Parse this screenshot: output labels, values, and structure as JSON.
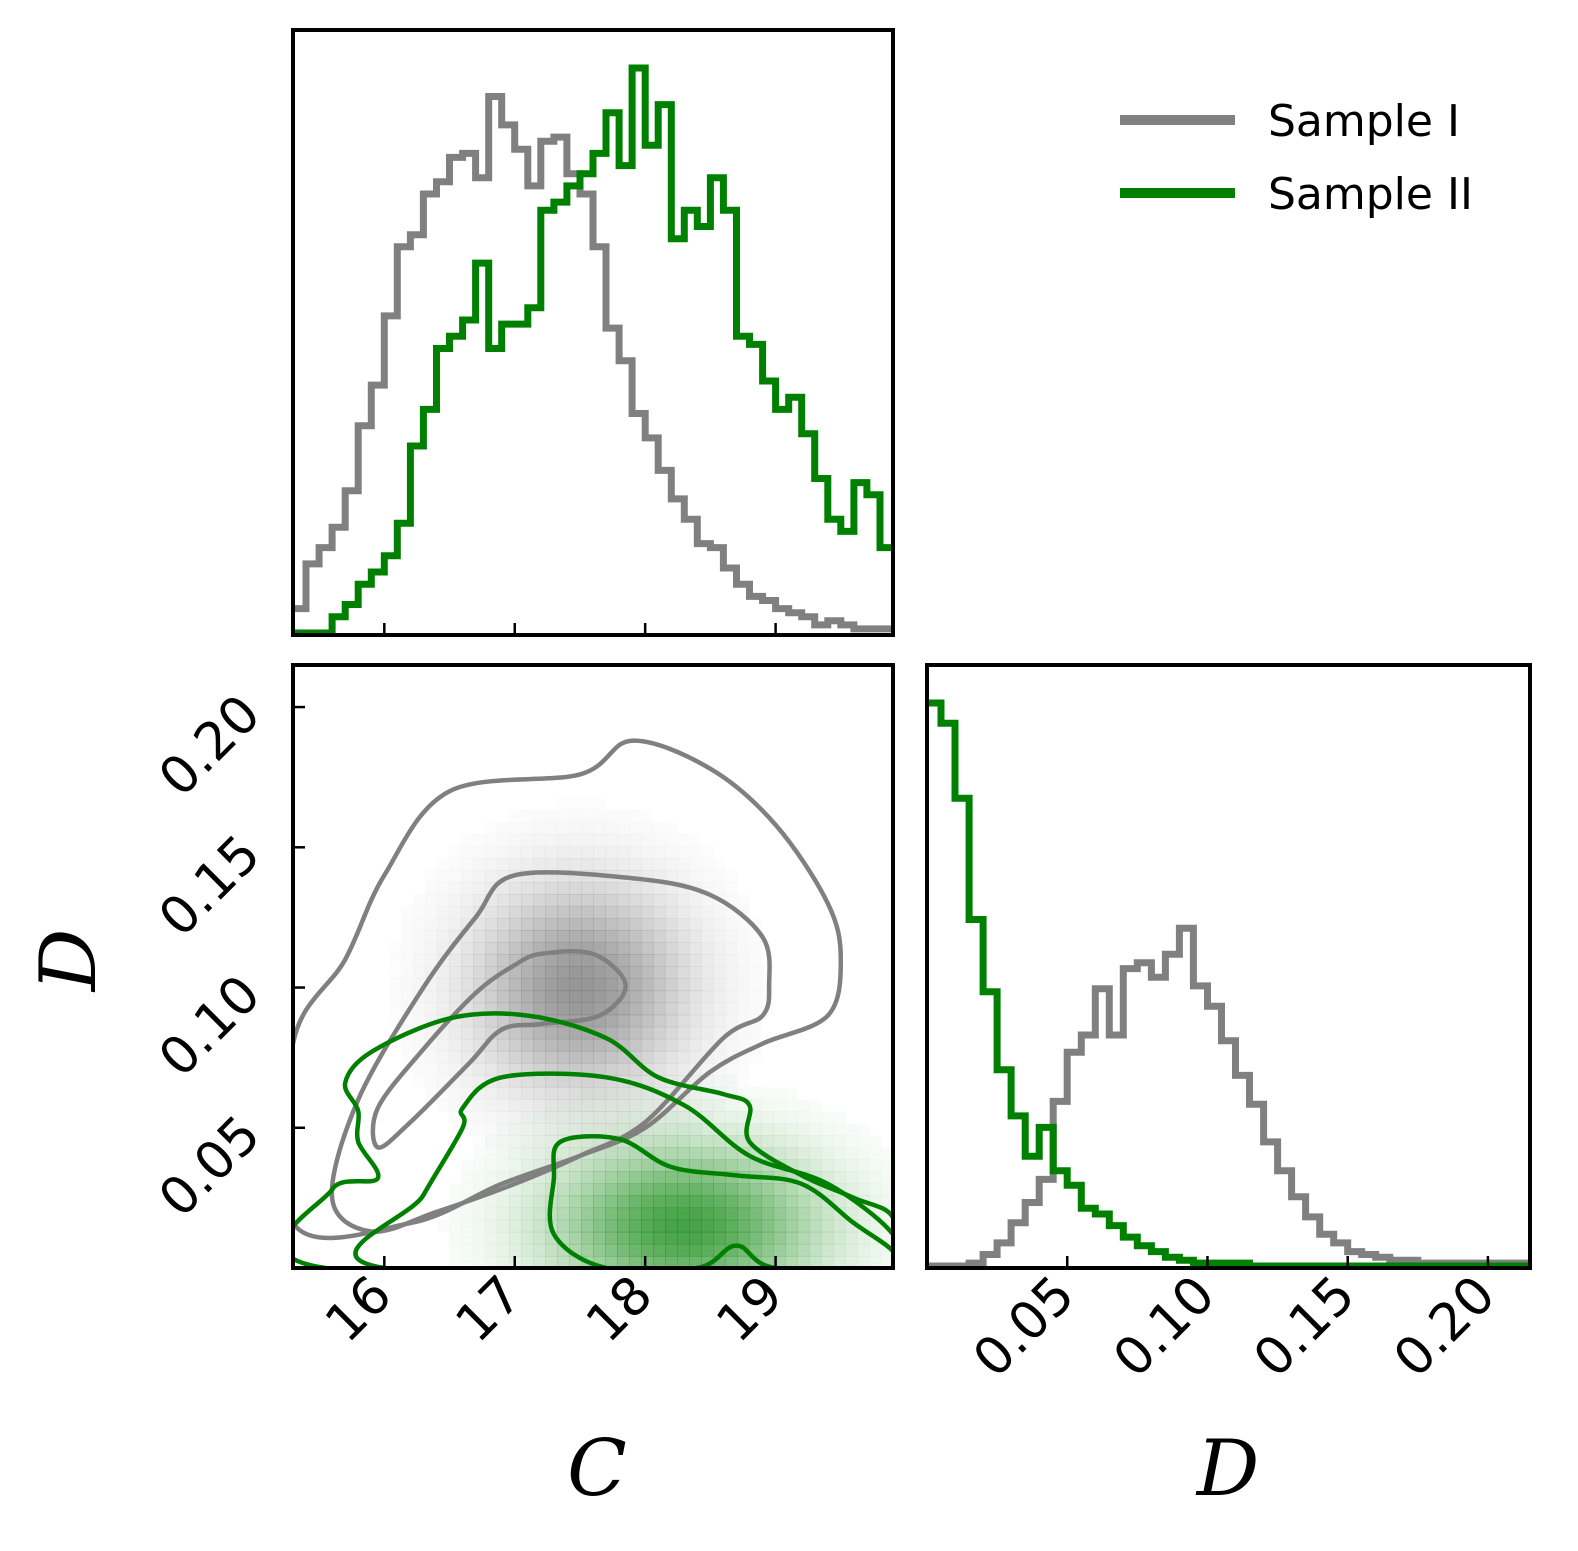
{
  "chart_data": [
    {
      "type": "histogram",
      "panel": "C marginal",
      "title": "",
      "xlabel": "",
      "ylabel": "",
      "xlim": [
        15.3,
        19.9
      ],
      "x_ticks": [
        16,
        17,
        18,
        19
      ],
      "x_tick_labels": [
        "16",
        "17",
        "18",
        "19"
      ],
      "bin_edges": [
        15.3,
        15.4,
        15.5,
        15.6,
        15.7,
        15.8,
        15.9,
        16.0,
        16.1,
        16.2,
        16.3,
        16.4,
        16.5,
        16.6,
        16.7,
        16.8,
        16.9,
        17.0,
        17.1,
        17.2,
        17.3,
        17.4,
        17.5,
        17.6,
        17.7,
        17.8,
        17.9,
        18.0,
        18.1,
        18.2,
        18.3,
        18.4,
        18.5,
        18.6,
        18.7,
        18.8,
        18.9,
        19.0,
        19.1,
        19.2,
        19.3,
        19.4,
        19.5,
        19.6,
        19.7,
        19.8,
        19.9
      ],
      "series": [
        {
          "name": "Sample I",
          "color": "#808080",
          "values": [
            0.06,
            0.17,
            0.21,
            0.26,
            0.35,
            0.51,
            0.61,
            0.78,
            0.95,
            0.98,
            1.08,
            1.11,
            1.17,
            1.18,
            1.12,
            1.32,
            1.25,
            1.19,
            1.1,
            1.21,
            1.22,
            1.13,
            1.08,
            0.95,
            0.75,
            0.67,
            0.54,
            0.48,
            0.4,
            0.33,
            0.28,
            0.22,
            0.21,
            0.16,
            0.12,
            0.09,
            0.08,
            0.06,
            0.05,
            0.04,
            0.02,
            0.03,
            0.02,
            0.01,
            0.01,
            0.01
          ]
        },
        {
          "name": "Sample II",
          "color": "#008000",
          "values": [
            0.0,
            0.0,
            0.0,
            0.04,
            0.07,
            0.12,
            0.15,
            0.19,
            0.27,
            0.46,
            0.55,
            0.7,
            0.73,
            0.77,
            0.91,
            0.7,
            0.76,
            0.76,
            0.8,
            1.04,
            1.06,
            1.1,
            1.13,
            1.18,
            1.28,
            1.15,
            1.39,
            1.2,
            1.3,
            0.97,
            1.04,
            1.0,
            1.12,
            1.04,
            0.73,
            0.71,
            0.62,
            0.55,
            0.58,
            0.49,
            0.38,
            0.28,
            0.25,
            0.37,
            0.34,
            0.21
          ]
        }
      ]
    },
    {
      "type": "contour",
      "panel": "C vs D joint",
      "title": "",
      "xlabel": "C",
      "ylabel": "D",
      "xlim": [
        15.3,
        19.9
      ],
      "ylim": [
        0.0,
        0.215
      ],
      "x_ticks": [
        16,
        17,
        18,
        19
      ],
      "x_tick_labels": [
        "16",
        "17",
        "18",
        "19"
      ],
      "y_ticks": [
        0.05,
        0.1,
        0.15,
        0.2
      ],
      "y_tick_labels": [
        "0.05",
        "0.10",
        "0.15",
        "0.20"
      ],
      "series": [
        {
          "name": "Sample I",
          "color": "#808080",
          "density_peak": [
            17.5,
            0.1
          ],
          "density_sigma": [
            0.55,
            0.025
          ],
          "contours": [
            {
              "level": "inner",
              "points": [
                [
                  17.2,
                  0.112
                ],
                [
                  17.6,
                  0.112
                ],
                [
                  17.85,
                  0.101
                ],
                [
                  17.65,
                  0.09
                ],
                [
                  17.2,
                  0.087
                ],
                [
                  16.9,
                  0.085
                ],
                [
                  16.65,
                  0.073
                ],
                [
                  16.2,
                  0.052
                ],
                [
                  15.95,
                  0.043
                ],
                [
                  15.95,
                  0.057
                ],
                [
                  16.3,
                  0.078
                ],
                [
                  16.7,
                  0.098
                ],
                [
                  17.0,
                  0.108
                ]
              ]
            },
            {
              "level": "middle",
              "points": [
                [
                  17.0,
                  0.14
                ],
                [
                  17.9,
                  0.139
                ],
                [
                  18.5,
                  0.133
                ],
                [
                  18.9,
                  0.118
                ],
                [
                  18.95,
                  0.101
                ],
                [
                  18.9,
                  0.09
                ],
                [
                  18.6,
                  0.082
                ],
                [
                  18.0,
                  0.052
                ],
                [
                  17.5,
                  0.04
                ],
                [
                  17.0,
                  0.03
                ],
                [
                  16.4,
                  0.02
                ],
                [
                  15.9,
                  0.013
                ],
                [
                  15.6,
                  0.025
                ],
                [
                  15.8,
                  0.06
                ],
                [
                  16.3,
                  0.1
                ],
                [
                  16.7,
                  0.125
                ]
              ]
            },
            {
              "level": "outer",
              "points": [
                [
                  16.5,
                  0.17
                ],
                [
                  17.5,
                  0.176
                ],
                [
                  17.9,
                  0.188
                ],
                [
                  18.5,
                  0.178
                ],
                [
                  19.0,
                  0.158
                ],
                [
                  19.4,
                  0.13
                ],
                [
                  19.5,
                  0.11
                ],
                [
                  19.4,
                  0.09
                ],
                [
                  18.9,
                  0.08
                ],
                [
                  18.5,
                  0.07
                ],
                [
                  18.0,
                  0.05
                ],
                [
                  17.5,
                  0.04
                ],
                [
                  16.9,
                  0.03
                ],
                [
                  16.2,
                  0.016
                ],
                [
                  15.3,
                  0.016
                ],
                [
                  15.3,
                  0.08
                ],
                [
                  15.7,
                  0.11
                ],
                [
                  16.0,
                  0.14
                ]
              ]
            }
          ]
        },
        {
          "name": "Sample II",
          "color": "#008000",
          "density_peak": [
            18.3,
            0.015
          ],
          "density_sigma": [
            0.7,
            0.02
          ],
          "contours": [
            {
              "level": "inner",
              "points": [
                [
                  17.35,
                  0.045
                ],
                [
                  17.8,
                  0.046
                ],
                [
                  18.2,
                  0.036
                ],
                [
                  18.7,
                  0.033
                ],
                [
                  19.2,
                  0.03
                ],
                [
                  19.6,
                  0.016
                ],
                [
                  19.9,
                  0.006
                ],
                [
                  19.9,
                  0.0
                ],
                [
                  19.0,
                  0.0
                ],
                [
                  18.7,
                  0.008
                ],
                [
                  18.4,
                  0.0
                ],
                [
                  17.7,
                  0.0
                ],
                [
                  17.3,
                  0.012
                ],
                [
                  17.3,
                  0.032
                ]
              ]
            },
            {
              "level": "middle",
              "points": [
                [
                  16.9,
                  0.068
                ],
                [
                  17.7,
                  0.068
                ],
                [
                  18.3,
                  0.058
                ],
                [
                  18.8,
                  0.04
                ],
                [
                  19.4,
                  0.03
                ],
                [
                  19.9,
                  0.012
                ],
                [
                  19.9,
                  0.0
                ],
                [
                  16.0,
                  0.0
                ],
                [
                  16.3,
                  0.026
                ],
                [
                  16.6,
                  0.05
                ],
                [
                  16.6,
                  0.057
                ]
              ]
            },
            {
              "level": "outer",
              "points": [
                [
                  15.9,
                  0.077
                ],
                [
                  16.5,
                  0.089
                ],
                [
                  17.1,
                  0.09
                ],
                [
                  17.7,
                  0.082
                ],
                [
                  18.1,
                  0.068
                ],
                [
                  18.6,
                  0.062
                ],
                [
                  18.8,
                  0.058
                ],
                [
                  18.8,
                  0.045
                ],
                [
                  19.2,
                  0.033
                ],
                [
                  19.6,
                  0.025
                ],
                [
                  19.9,
                  0.018
                ],
                [
                  19.9,
                  0.0
                ],
                [
                  15.55,
                  0.0
                ],
                [
                  15.6,
                  0.028
                ],
                [
                  15.95,
                  0.032
                ],
                [
                  15.8,
                  0.045
                ],
                [
                  15.8,
                  0.056
                ],
                [
                  15.7,
                  0.066
                ]
              ]
            }
          ]
        }
      ]
    },
    {
      "type": "histogram",
      "panel": "D marginal",
      "title": "",
      "xlabel": "D",
      "ylabel": "",
      "xlim": [
        0.0,
        0.215
      ],
      "x_ticks": [
        0.05,
        0.1,
        0.15,
        0.2
      ],
      "x_tick_labels": [
        "0.05",
        "0.10",
        "0.15",
        "0.20"
      ],
      "bin_edges": [
        0.0,
        0.005,
        0.01,
        0.015,
        0.02,
        0.025,
        0.03,
        0.035,
        0.04,
        0.045,
        0.05,
        0.055,
        0.06,
        0.065,
        0.07,
        0.075,
        0.08,
        0.085,
        0.09,
        0.095,
        0.1,
        0.105,
        0.11,
        0.115,
        0.12,
        0.125,
        0.13,
        0.135,
        0.14,
        0.145,
        0.15,
        0.155,
        0.16,
        0.165,
        0.17,
        0.175,
        0.18,
        0.185,
        0.19,
        0.195,
        0.2,
        0.205,
        0.21,
        0.215
      ],
      "series": [
        {
          "name": "Sample I",
          "color": "#808080",
          "values": [
            0.0,
            0.0,
            0.0,
            0.01,
            0.04,
            0.08,
            0.15,
            0.22,
            0.3,
            0.57,
            0.74,
            0.8,
            0.96,
            0.8,
            1.03,
            1.05,
            1.0,
            1.08,
            1.17,
            0.97,
            0.9,
            0.78,
            0.66,
            0.56,
            0.43,
            0.33,
            0.24,
            0.17,
            0.11,
            0.08,
            0.05,
            0.04,
            0.03,
            0.02,
            0.02,
            0.01,
            0.01,
            0.01,
            0.01,
            0.01,
            0.01,
            0.01,
            0.01
          ]
        },
        {
          "name": "Sample II",
          "color": "#008000",
          "values": [
            1.95,
            1.88,
            1.62,
            1.2,
            0.95,
            0.68,
            0.52,
            0.38,
            0.48,
            0.33,
            0.28,
            0.2,
            0.18,
            0.14,
            0.1,
            0.07,
            0.05,
            0.03,
            0.02,
            0.01,
            0.01,
            0.01,
            0.01,
            0.0,
            0.0,
            0.0,
            0.0,
            0.0,
            0.0,
            0.0,
            0.0,
            0.0,
            0.0,
            0.0,
            0.0,
            0.0,
            0.0,
            0.0,
            0.0,
            0.0,
            0.0,
            0.0,
            0.0
          ]
        }
      ]
    }
  ],
  "legend": {
    "position": "top-right",
    "items": [
      {
        "label": "Sample I",
        "color": "#808080"
      },
      {
        "label": "Sample II",
        "color": "#008000"
      }
    ]
  }
}
